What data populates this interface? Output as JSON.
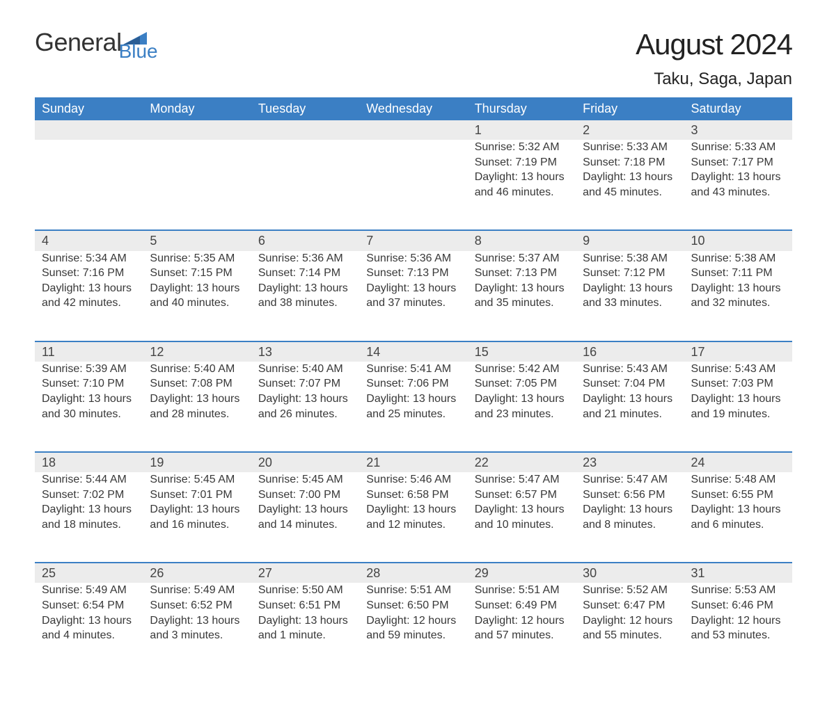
{
  "logo": {
    "word1": "General",
    "word2": "Blue",
    "triangle_color": "#3b7fc4"
  },
  "title": "August 2024",
  "location": "Taku, Saga, Japan",
  "colors": {
    "header_bg": "#3b7fc4",
    "header_text": "#ffffff",
    "stripe_bg": "#ececec",
    "border": "#3b7fc4",
    "body_text": "#383838",
    "page_bg": "#ffffff"
  },
  "font": {
    "family": "Arial",
    "title_size": 42,
    "location_size": 24,
    "th_size": 18,
    "cell_size": 16
  },
  "day_headers": [
    "Sunday",
    "Monday",
    "Tuesday",
    "Wednesday",
    "Thursday",
    "Friday",
    "Saturday"
  ],
  "weeks": [
    {
      "days": [
        null,
        null,
        null,
        null,
        {
          "n": "1",
          "sunrise": "Sunrise: 5:32 AM",
          "sunset": "Sunset: 7:19 PM",
          "daylight": "Daylight: 13 hours and 46 minutes."
        },
        {
          "n": "2",
          "sunrise": "Sunrise: 5:33 AM",
          "sunset": "Sunset: 7:18 PM",
          "daylight": "Daylight: 13 hours and 45 minutes."
        },
        {
          "n": "3",
          "sunrise": "Sunrise: 5:33 AM",
          "sunset": "Sunset: 7:17 PM",
          "daylight": "Daylight: 13 hours and 43 minutes."
        }
      ]
    },
    {
      "days": [
        {
          "n": "4",
          "sunrise": "Sunrise: 5:34 AM",
          "sunset": "Sunset: 7:16 PM",
          "daylight": "Daylight: 13 hours and 42 minutes."
        },
        {
          "n": "5",
          "sunrise": "Sunrise: 5:35 AM",
          "sunset": "Sunset: 7:15 PM",
          "daylight": "Daylight: 13 hours and 40 minutes."
        },
        {
          "n": "6",
          "sunrise": "Sunrise: 5:36 AM",
          "sunset": "Sunset: 7:14 PM",
          "daylight": "Daylight: 13 hours and 38 minutes."
        },
        {
          "n": "7",
          "sunrise": "Sunrise: 5:36 AM",
          "sunset": "Sunset: 7:13 PM",
          "daylight": "Daylight: 13 hours and 37 minutes."
        },
        {
          "n": "8",
          "sunrise": "Sunrise: 5:37 AM",
          "sunset": "Sunset: 7:13 PM",
          "daylight": "Daylight: 13 hours and 35 minutes."
        },
        {
          "n": "9",
          "sunrise": "Sunrise: 5:38 AM",
          "sunset": "Sunset: 7:12 PM",
          "daylight": "Daylight: 13 hours and 33 minutes."
        },
        {
          "n": "10",
          "sunrise": "Sunrise: 5:38 AM",
          "sunset": "Sunset: 7:11 PM",
          "daylight": "Daylight: 13 hours and 32 minutes."
        }
      ]
    },
    {
      "days": [
        {
          "n": "11",
          "sunrise": "Sunrise: 5:39 AM",
          "sunset": "Sunset: 7:10 PM",
          "daylight": "Daylight: 13 hours and 30 minutes."
        },
        {
          "n": "12",
          "sunrise": "Sunrise: 5:40 AM",
          "sunset": "Sunset: 7:08 PM",
          "daylight": "Daylight: 13 hours and 28 minutes."
        },
        {
          "n": "13",
          "sunrise": "Sunrise: 5:40 AM",
          "sunset": "Sunset: 7:07 PM",
          "daylight": "Daylight: 13 hours and 26 minutes."
        },
        {
          "n": "14",
          "sunrise": "Sunrise: 5:41 AM",
          "sunset": "Sunset: 7:06 PM",
          "daylight": "Daylight: 13 hours and 25 minutes."
        },
        {
          "n": "15",
          "sunrise": "Sunrise: 5:42 AM",
          "sunset": "Sunset: 7:05 PM",
          "daylight": "Daylight: 13 hours and 23 minutes."
        },
        {
          "n": "16",
          "sunrise": "Sunrise: 5:43 AM",
          "sunset": "Sunset: 7:04 PM",
          "daylight": "Daylight: 13 hours and 21 minutes."
        },
        {
          "n": "17",
          "sunrise": "Sunrise: 5:43 AM",
          "sunset": "Sunset: 7:03 PM",
          "daylight": "Daylight: 13 hours and 19 minutes."
        }
      ]
    },
    {
      "days": [
        {
          "n": "18",
          "sunrise": "Sunrise: 5:44 AM",
          "sunset": "Sunset: 7:02 PM",
          "daylight": "Daylight: 13 hours and 18 minutes."
        },
        {
          "n": "19",
          "sunrise": "Sunrise: 5:45 AM",
          "sunset": "Sunset: 7:01 PM",
          "daylight": "Daylight: 13 hours and 16 minutes."
        },
        {
          "n": "20",
          "sunrise": "Sunrise: 5:45 AM",
          "sunset": "Sunset: 7:00 PM",
          "daylight": "Daylight: 13 hours and 14 minutes."
        },
        {
          "n": "21",
          "sunrise": "Sunrise: 5:46 AM",
          "sunset": "Sunset: 6:58 PM",
          "daylight": "Daylight: 13 hours and 12 minutes."
        },
        {
          "n": "22",
          "sunrise": "Sunrise: 5:47 AM",
          "sunset": "Sunset: 6:57 PM",
          "daylight": "Daylight: 13 hours and 10 minutes."
        },
        {
          "n": "23",
          "sunrise": "Sunrise: 5:47 AM",
          "sunset": "Sunset: 6:56 PM",
          "daylight": "Daylight: 13 hours and 8 minutes."
        },
        {
          "n": "24",
          "sunrise": "Sunrise: 5:48 AM",
          "sunset": "Sunset: 6:55 PM",
          "daylight": "Daylight: 13 hours and 6 minutes."
        }
      ]
    },
    {
      "days": [
        {
          "n": "25",
          "sunrise": "Sunrise: 5:49 AM",
          "sunset": "Sunset: 6:54 PM",
          "daylight": "Daylight: 13 hours and 4 minutes."
        },
        {
          "n": "26",
          "sunrise": "Sunrise: 5:49 AM",
          "sunset": "Sunset: 6:52 PM",
          "daylight": "Daylight: 13 hours and 3 minutes."
        },
        {
          "n": "27",
          "sunrise": "Sunrise: 5:50 AM",
          "sunset": "Sunset: 6:51 PM",
          "daylight": "Daylight: 13 hours and 1 minute."
        },
        {
          "n": "28",
          "sunrise": "Sunrise: 5:51 AM",
          "sunset": "Sunset: 6:50 PM",
          "daylight": "Daylight: 12 hours and 59 minutes."
        },
        {
          "n": "29",
          "sunrise": "Sunrise: 5:51 AM",
          "sunset": "Sunset: 6:49 PM",
          "daylight": "Daylight: 12 hours and 57 minutes."
        },
        {
          "n": "30",
          "sunrise": "Sunrise: 5:52 AM",
          "sunset": "Sunset: 6:47 PM",
          "daylight": "Daylight: 12 hours and 55 minutes."
        },
        {
          "n": "31",
          "sunrise": "Sunrise: 5:53 AM",
          "sunset": "Sunset: 6:46 PM",
          "daylight": "Daylight: 12 hours and 53 minutes."
        }
      ]
    }
  ]
}
